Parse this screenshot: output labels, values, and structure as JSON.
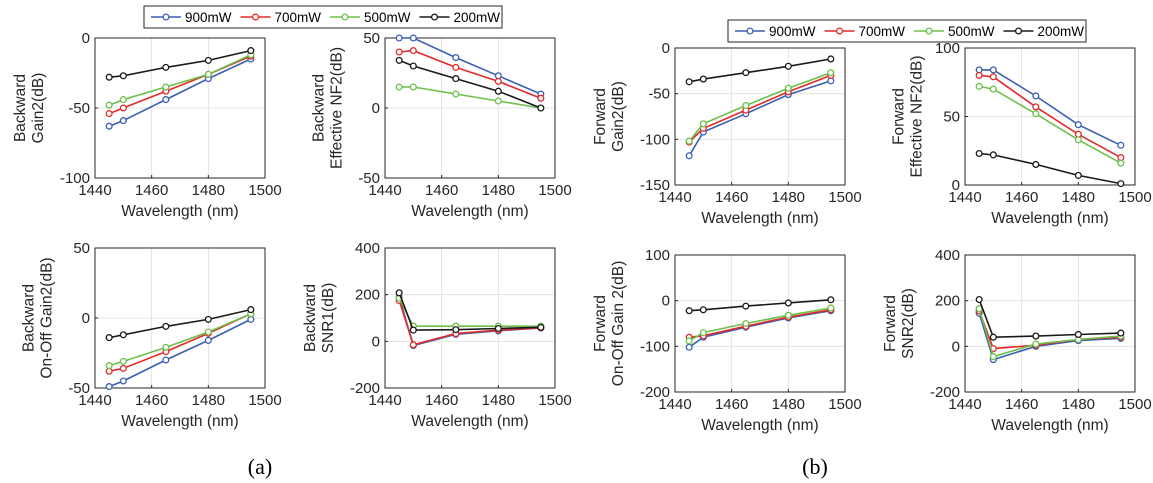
{
  "figure": {
    "panel_labels": [
      "(a)",
      "(b)"
    ],
    "legends": [
      {
        "entries": [
          "900mW",
          "700mW",
          "500mW",
          "200mW"
        ]
      },
      {
        "entries": [
          "900mW",
          "700mW",
          "500mW",
          "200mW"
        ]
      }
    ]
  },
  "series_colors": {
    "900mW": "#3a5fb4",
    "700mW": "#e32a2a",
    "500mW": "#6cc04a",
    "200mW": "#1a1a1a"
  },
  "chart_data": [
    {
      "type": "line",
      "panel": "(a)",
      "xlabel": "Wavelength (nm)",
      "ylabel": [
        "Backward",
        "Gain2(dB)"
      ],
      "xlim": [
        1440,
        1500
      ],
      "ylim": [
        -100,
        0
      ],
      "xticks": [
        1440,
        1460,
        1480,
        1500
      ],
      "yticks": [
        -100,
        -50,
        0
      ],
      "grid": true,
      "x": [
        1445,
        1450,
        1465,
        1480,
        1495
      ],
      "series": [
        {
          "name": "900mW",
          "values": [
            -63,
            -59,
            -44,
            -29,
            -15
          ]
        },
        {
          "name": "700mW",
          "values": [
            -54,
            -50,
            -38,
            -26,
            -13
          ]
        },
        {
          "name": "500mW",
          "values": [
            -48,
            -44,
            -35,
            -26,
            -12
          ]
        },
        {
          "name": "200mW",
          "values": [
            -28,
            -27,
            -21,
            -16,
            -9
          ]
        }
      ]
    },
    {
      "type": "line",
      "panel": "(a)",
      "xlabel": "Wavelength (nm)",
      "ylabel": [
        "Backward",
        "Effective NF2(dB)"
      ],
      "xlim": [
        1440,
        1500
      ],
      "ylim": [
        -50,
        50
      ],
      "xticks": [
        1440,
        1460,
        1480,
        1500
      ],
      "yticks": [
        -50,
        0,
        50
      ],
      "grid": true,
      "x": [
        1445,
        1450,
        1465,
        1480,
        1495
      ],
      "series": [
        {
          "name": "900mW",
          "values": [
            50,
            50,
            36,
            23,
            10
          ]
        },
        {
          "name": "700mW",
          "values": [
            40,
            41,
            29,
            19,
            7
          ]
        },
        {
          "name": "500mW",
          "values": [
            15,
            15,
            10,
            5,
            0
          ]
        },
        {
          "name": "200mW",
          "values": [
            34,
            30,
            21,
            12,
            0
          ]
        }
      ]
    },
    {
      "type": "line",
      "panel": "(a)",
      "xlabel": "Wavelength (nm)",
      "ylabel": [
        "Backward",
        "On-Off Gain2(dB)"
      ],
      "xlim": [
        1440,
        1500
      ],
      "ylim": [
        -50,
        50
      ],
      "xticks": [
        1440,
        1460,
        1480,
        1500
      ],
      "yticks": [
        -50,
        0,
        50
      ],
      "grid": true,
      "x": [
        1445,
        1450,
        1465,
        1480,
        1495
      ],
      "series": [
        {
          "name": "900mW",
          "values": [
            -49,
            -45,
            -30,
            -16,
            -1
          ]
        },
        {
          "name": "700mW",
          "values": [
            -38,
            -36,
            -24,
            -11,
            3
          ]
        },
        {
          "name": "500mW",
          "values": [
            -34,
            -31,
            -21,
            -10,
            3
          ]
        },
        {
          "name": "200mW",
          "values": [
            -14,
            -12,
            -6,
            -1,
            6
          ]
        }
      ]
    },
    {
      "type": "line",
      "panel": "(a)",
      "xlabel": "Wavelength (nm)",
      "ylabel": [
        "Backward",
        "SNR1(dB)"
      ],
      "xlim": [
        1440,
        1500
      ],
      "ylim": [
        -200,
        400
      ],
      "xticks": [
        1440,
        1460,
        1480,
        1500
      ],
      "yticks": [
        -200,
        0,
        200,
        400
      ],
      "grid": true,
      "x": [
        1445,
        1450,
        1465,
        1480,
        1495
      ],
      "series": [
        {
          "name": "900mW",
          "values": [
            190,
            -18,
            30,
            45,
            57
          ]
        },
        {
          "name": "700mW",
          "values": [
            175,
            -15,
            33,
            48,
            58
          ]
        },
        {
          "name": "500mW",
          "values": [
            185,
            65,
            65,
            65,
            65
          ]
        },
        {
          "name": "200mW",
          "values": [
            208,
            48,
            50,
            55,
            60
          ]
        }
      ]
    },
    {
      "type": "line",
      "panel": "(b)",
      "xlabel": "Wavelength (nm)",
      "ylabel": [
        "Forward",
        "Gain2(dB)"
      ],
      "xlim": [
        1440,
        1500
      ],
      "ylim": [
        -150,
        0
      ],
      "xticks": [
        1440,
        1460,
        1480,
        1500
      ],
      "yticks": [
        -150,
        -100,
        -50,
        0
      ],
      "grid": true,
      "x": [
        1445,
        1450,
        1465,
        1480,
        1495
      ],
      "series": [
        {
          "name": "900mW",
          "values": [
            -118,
            -92,
            -72,
            -51,
            -36
          ]
        },
        {
          "name": "700mW",
          "values": [
            -103,
            -88,
            -68,
            -48,
            -30
          ]
        },
        {
          "name": "500mW",
          "values": [
            -102,
            -83,
            -63,
            -44,
            -27
          ]
        },
        {
          "name": "200mW",
          "values": [
            -37,
            -34,
            -27,
            -20,
            -12
          ]
        }
      ]
    },
    {
      "type": "line",
      "panel": "(b)",
      "xlabel": "Wavelength (nm)",
      "ylabel": [
        "Forward",
        "Effective NF2(dB)"
      ],
      "xlim": [
        1440,
        1500
      ],
      "ylim": [
        0,
        100
      ],
      "xticks": [
        1440,
        1460,
        1480,
        1500
      ],
      "yticks": [
        0,
        50,
        100
      ],
      "grid": true,
      "x": [
        1445,
        1450,
        1465,
        1480,
        1495
      ],
      "series": [
        {
          "name": "900mW",
          "values": [
            84,
            84,
            65,
            44,
            29
          ]
        },
        {
          "name": "700mW",
          "values": [
            80,
            79,
            57,
            37,
            20
          ]
        },
        {
          "name": "500mW",
          "values": [
            72,
            70,
            52,
            33,
            16
          ]
        },
        {
          "name": "200mW",
          "values": [
            23,
            22,
            15,
            7,
            1
          ]
        }
      ]
    },
    {
      "type": "line",
      "panel": "(b)",
      "xlabel": "Wavelength (nm)",
      "ylabel": [
        "Forward",
        "On-Off Gain 2(dB)"
      ],
      "xlim": [
        1440,
        1500
      ],
      "ylim": [
        -200,
        100
      ],
      "xticks": [
        1440,
        1460,
        1480,
        1500
      ],
      "yticks": [
        -200,
        -100,
        0,
        100
      ],
      "grid": true,
      "x": [
        1445,
        1450,
        1465,
        1480,
        1495
      ],
      "series": [
        {
          "name": "900mW",
          "values": [
            -102,
            -80,
            -58,
            -38,
            -22
          ]
        },
        {
          "name": "700mW",
          "values": [
            -80,
            -77,
            -56,
            -36,
            -20
          ]
        },
        {
          "name": "500mW",
          "values": [
            -88,
            -70,
            -50,
            -32,
            -16
          ]
        },
        {
          "name": "200mW",
          "values": [
            -22,
            -20,
            -12,
            -5,
            2
          ]
        }
      ]
    },
    {
      "type": "line",
      "panel": "(b)",
      "xlabel": "Wavelength (nm)",
      "ylabel": [
        "Forward",
        "SNR2(dB)"
      ],
      "xlim": [
        1440,
        1500
      ],
      "ylim": [
        -200,
        400
      ],
      "xticks": [
        1440,
        1460,
        1480,
        1500
      ],
      "yticks": [
        -200,
        0,
        200,
        400
      ],
      "grid": true,
      "x": [
        1445,
        1450,
        1465,
        1480,
        1495
      ],
      "series": [
        {
          "name": "900mW",
          "values": [
            145,
            -58,
            0,
            25,
            35
          ]
        },
        {
          "name": "700mW",
          "values": [
            155,
            -10,
            5,
            30,
            40
          ]
        },
        {
          "name": "500mW",
          "values": [
            165,
            -45,
            10,
            30,
            45
          ]
        },
        {
          "name": "200mW",
          "values": [
            205,
            40,
            45,
            52,
            58
          ]
        }
      ]
    }
  ]
}
